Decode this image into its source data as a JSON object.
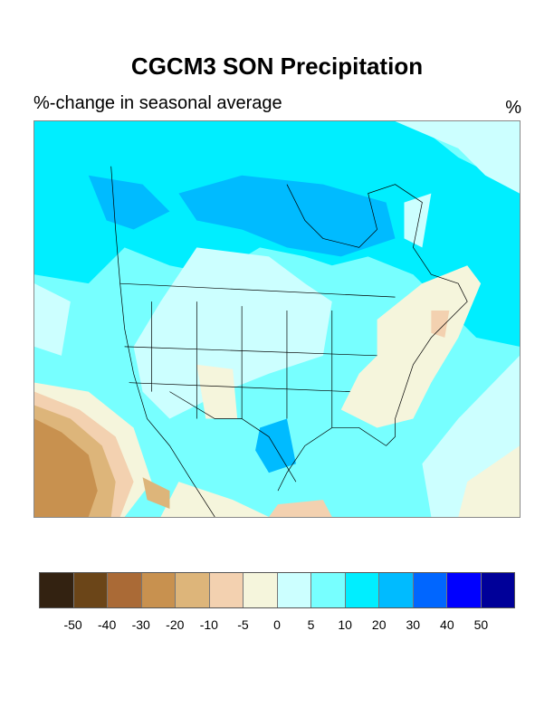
{
  "title": "CGCM3 SON Precipitation",
  "left_subtitle": "%-change in seasonal average",
  "right_subtitle": "%",
  "colorbar": {
    "colors": [
      "#332211",
      "#6b4518",
      "#aa6a36",
      "#c8914f",
      "#ddb57a",
      "#f3d1b0",
      "#f5f5dc",
      "#ccffff",
      "#77ffff",
      "#00eeff",
      "#00bbff",
      "#0066ff",
      "#0000ff",
      "#000099"
    ],
    "labels": [
      "-50",
      "-40",
      "-30",
      "-20",
      "-10",
      "-5",
      "0",
      "5",
      "10",
      "20",
      "30",
      "40",
      "50"
    ]
  }
}
